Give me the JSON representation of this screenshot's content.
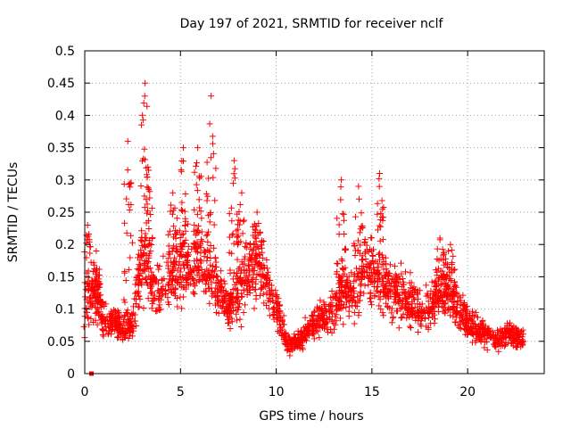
{
  "chart_data": {
    "type": "scatter",
    "title": "Day 197 of 2021, SRMTID for receiver nclf",
    "xlabel": "GPS time / hours",
    "ylabel": "SRMTID / TECUs",
    "xlim": [
      0,
      24
    ],
    "ylim": [
      0,
      0.5
    ],
    "xticks": [
      0,
      5,
      10,
      15,
      20
    ],
    "yticks": [
      0,
      0.05,
      0.1,
      0.15,
      0.2,
      0.25,
      0.3,
      0.35,
      0.4,
      0.45,
      0.5
    ],
    "ytick_labels": [
      "0",
      "0.05",
      "0.1",
      "0.15",
      "0.2",
      "0.25",
      "0.3",
      "0.35",
      "0.4",
      "0.45",
      "0.5"
    ],
    "grid": true,
    "marker": "plus",
    "color": "#ff0000",
    "x_end": 22.9,
    "baseline_envelope": [
      [
        0.0,
        0.11
      ],
      [
        0.5,
        0.13
      ],
      [
        1.0,
        0.08
      ],
      [
        1.5,
        0.08
      ],
      [
        2.0,
        0.07
      ],
      [
        2.5,
        0.08
      ],
      [
        3.0,
        0.18
      ],
      [
        3.5,
        0.14
      ],
      [
        4.0,
        0.13
      ],
      [
        4.5,
        0.15
      ],
      [
        5.0,
        0.17
      ],
      [
        5.5,
        0.16
      ],
      [
        6.0,
        0.18
      ],
      [
        6.5,
        0.16
      ],
      [
        7.0,
        0.13
      ],
      [
        7.5,
        0.1
      ],
      [
        8.0,
        0.12
      ],
      [
        8.5,
        0.16
      ],
      [
        9.0,
        0.17
      ],
      [
        9.5,
        0.14
      ],
      [
        10.0,
        0.11
      ],
      [
        10.5,
        0.05
      ],
      [
        11.0,
        0.05
      ],
      [
        11.5,
        0.06
      ],
      [
        12.0,
        0.08
      ],
      [
        12.5,
        0.09
      ],
      [
        13.0,
        0.1
      ],
      [
        13.5,
        0.13
      ],
      [
        14.0,
        0.12
      ],
      [
        14.5,
        0.15
      ],
      [
        15.0,
        0.16
      ],
      [
        15.5,
        0.15
      ],
      [
        16.0,
        0.13
      ],
      [
        16.5,
        0.12
      ],
      [
        17.0,
        0.11
      ],
      [
        17.5,
        0.1
      ],
      [
        18.0,
        0.1
      ],
      [
        18.5,
        0.12
      ],
      [
        19.0,
        0.13
      ],
      [
        19.5,
        0.1
      ],
      [
        20.0,
        0.08
      ],
      [
        20.5,
        0.07
      ],
      [
        21.0,
        0.06
      ],
      [
        21.5,
        0.05
      ],
      [
        22.0,
        0.06
      ],
      [
        22.5,
        0.06
      ],
      [
        22.9,
        0.05
      ]
    ],
    "peaks": [
      {
        "x": 0.15,
        "y": 0.23
      },
      {
        "x": 0.6,
        "y": 0.19
      },
      {
        "x": 2.25,
        "y": 0.36
      },
      {
        "x": 3.15,
        "y": 0.45
      },
      {
        "x": 3.3,
        "y": 0.32
      },
      {
        "x": 4.6,
        "y": 0.28
      },
      {
        "x": 5.15,
        "y": 0.35
      },
      {
        "x": 5.9,
        "y": 0.35
      },
      {
        "x": 6.6,
        "y": 0.43
      },
      {
        "x": 7.8,
        "y": 0.33
      },
      {
        "x": 8.2,
        "y": 0.28
      },
      {
        "x": 9.0,
        "y": 0.25
      },
      {
        "x": 13.4,
        "y": 0.3
      },
      {
        "x": 14.3,
        "y": 0.29
      },
      {
        "x": 15.4,
        "y": 0.31
      },
      {
        "x": 18.55,
        "y": 0.21
      },
      {
        "x": 19.1,
        "y": 0.2
      }
    ],
    "outliers": [
      {
        "x": 0.35,
        "y": 0.0
      }
    ]
  }
}
